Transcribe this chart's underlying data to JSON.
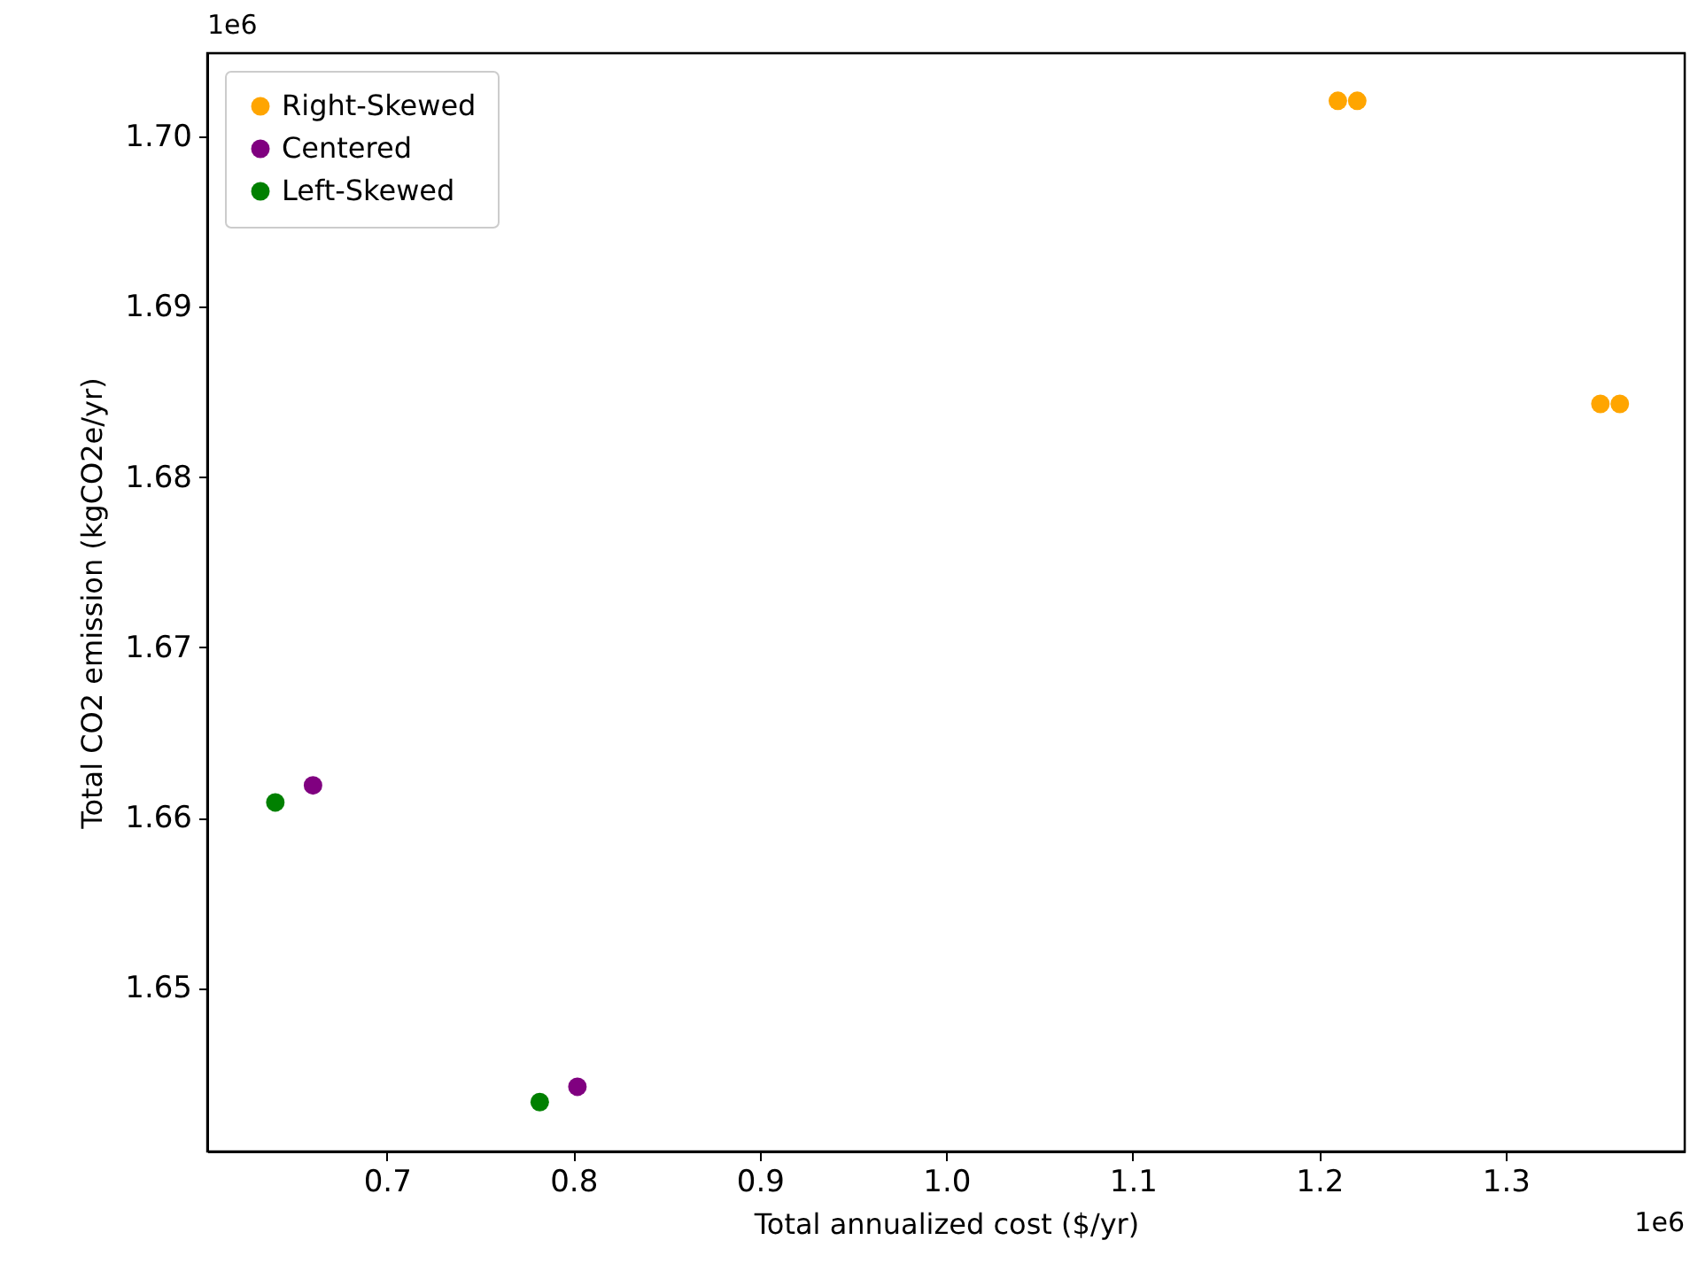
{
  "chart_data": {
    "type": "scatter",
    "xlabel": "Total annualized cost ($/yr)",
    "ylabel": "Total CO2 emission (kgCO2e/yr)",
    "annotations": [
      "1e6",
      "1e6"
    ],
    "series": [
      {
        "name": "Right-Skewed",
        "color": "#ffa500",
        "x": [
          1.21,
          1.2204,
          1.3508,
          1.3612
        ],
        "values": [
          1.7021,
          1.7021,
          1.6843,
          1.6843
        ]
      },
      {
        "name": "Centered",
        "color": "#800080",
        "x": [
          0.6604,
          0.8022
        ],
        "values": [
          1.6619,
          1.6442
        ]
      },
      {
        "name": "Left-Skewed",
        "color": "#008000",
        "x": [
          0.6402,
          0.782
        ],
        "values": [
          1.6609,
          1.6433
        ]
      }
    ],
    "xlim": [
      0.6037,
      1.396
    ],
    "ylim": [
      1.6404,
      1.7049
    ],
    "xticks": [
      0.7,
      0.8,
      0.9,
      {
        "value": 1.0,
        "label": "1.0"
      },
      1.1,
      1.2,
      1.3
    ],
    "yticks": [
      {
        "value": 1.65,
        "label": "1.65"
      },
      {
        "value": 1.66,
        "label": "1.66"
      },
      {
        "value": 1.67,
        "label": "1.67"
      },
      {
        "value": 1.68,
        "label": "1.68"
      },
      {
        "value": 1.69,
        "label": "1.69"
      },
      {
        "value": 1.7,
        "label": "1.70"
      }
    ],
    "legend": "top left",
    "grid": false
  }
}
